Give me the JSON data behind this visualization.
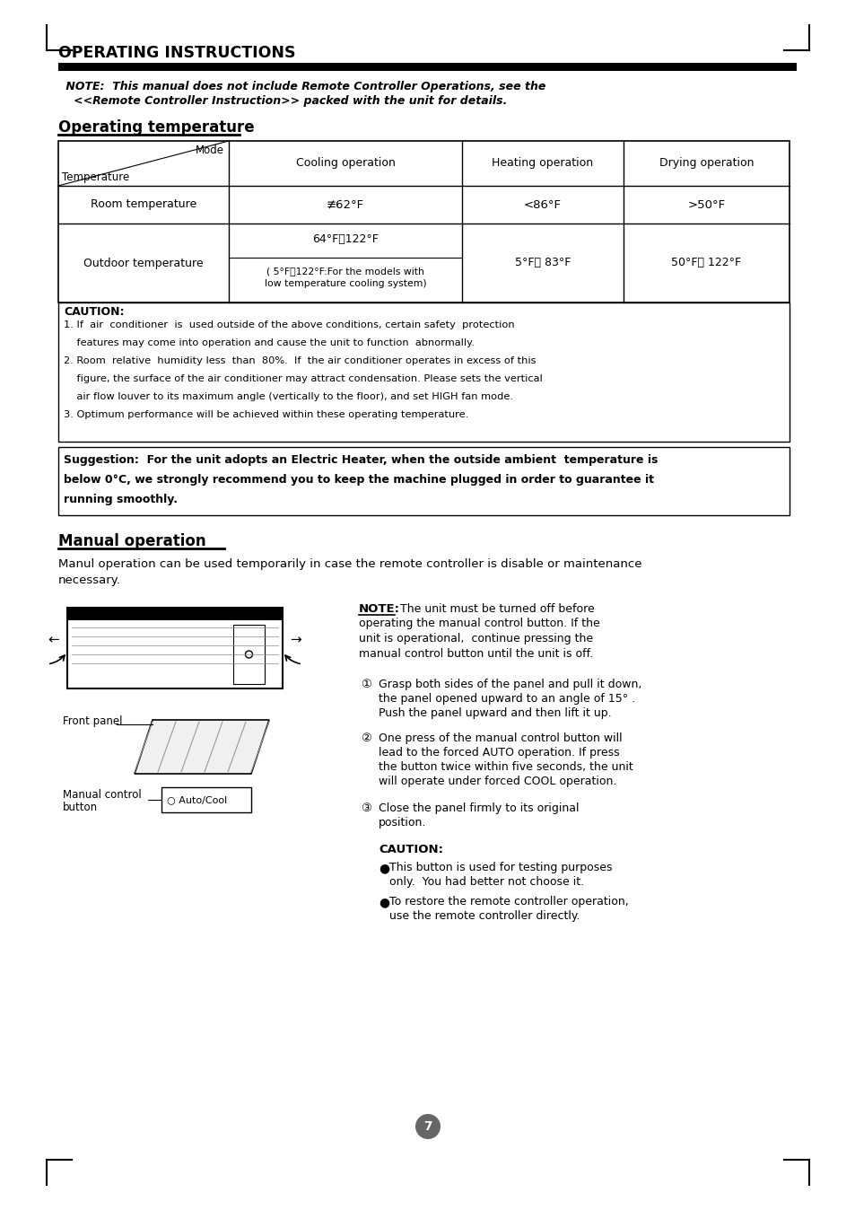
{
  "bg_color": "#ffffff",
  "title": "OPERATING INSTRUCTIONS",
  "note_line1": " NOTE:  This manual does not include Remote Controller Operations, see the",
  "note_line2": "   <<Remote Controller Instruction>> packed with the unit for details.",
  "section1_title": "Operating temperature",
  "col_header2": "Cooling operation",
  "col_header3": "Heating operation",
  "col_header4": "Drying operation",
  "col_diag1": "Mode",
  "col_diag2": "Temperature",
  "row1_c1": "Room temperature",
  "row1_c2": "≢62°F",
  "row1_c3": "<86°F",
  "row1_c4": ">50°F",
  "row2_c1": "Outdoor temperature",
  "row2_c2a": "64°F～122°F",
  "row2_c2b": "( 5°F～122°F:For the models with\nlow temperature cooling system)",
  "row2_c3": "5°F～ 83°F",
  "row2_c4": "50°F～ 122°F",
  "caution1_title": "CAUTION:",
  "caution1_line1": "1. If  air  conditioner  is  used outside of the above conditions, certain safety  protection",
  "caution1_line2": "    features may come into operation and cause the unit to function  abnormally.",
  "caution1_line3": "2. Room  relative  humidity less  than  80%.  If  the air conditioner operates in excess of this",
  "caution1_line4": "    figure, the surface of the air conditioner may attract condensation. Please sets the vertical",
  "caution1_line5": "    air flow louver to its maximum angle (vertically to the floor), and set HIGH fan mode.",
  "caution1_line6": "3. Optimum performance will be achieved within these operating temperature.",
  "sug_line1": "Suggestion:  For the unit adopts an Electric Heater, when the outside ambient  temperature is",
  "sug_line2": "below 0°C, we strongly recommend you to keep the machine plugged in order to guarantee it",
  "sug_line3": "running smoothly.",
  "section2_title": "Manual operation",
  "manual_intro1": "Manul operation can be used temporarily in case the remote controller is disable or maintenance",
  "manual_intro2": "necessary.",
  "note2_bold": "NOTE:",
  "note2_rest1": " The unit must be turned off before",
  "note2_rest2": "operating the manual control button. If the",
  "note2_rest3": "unit is operational,  continue pressing the",
  "note2_rest4": "manual control button until the unit is off.",
  "step1_num": "①",
  "step1_text1": "Grasp both sides of the panel and pull it down,",
  "step1_text2": "the panel opened upward to an angle of 15° .",
  "step1_text3": "Push the panel upward and then lift it up.",
  "step2_num": "②",
  "step2_text1": "One press of the manual control button will",
  "step2_text2": "lead to the forced AUTO operation. If press",
  "step2_text3": "the button twice within five seconds, the unit",
  "step2_text4": "will operate under forced COOL operation.",
  "step3_num": "③",
  "step3_text1": "Close the panel firmly to its original",
  "step3_text2": "position.",
  "caution2_title": "    CAUTION:",
  "caution2_b1_1": " This button is used for testing purposes",
  "caution2_b1_2": "   only.  You had better not choose it.",
  "caution2_b2_1": " To restore the remote controller operation,",
  "caution2_b2_2": "   use the remote controller directly.",
  "front_panel_label": "Front panel",
  "manual_control_label1": "Manual control",
  "manual_control_label2": "button",
  "auto_cool_label": "○ Auto/Cool",
  "page_number": "7"
}
